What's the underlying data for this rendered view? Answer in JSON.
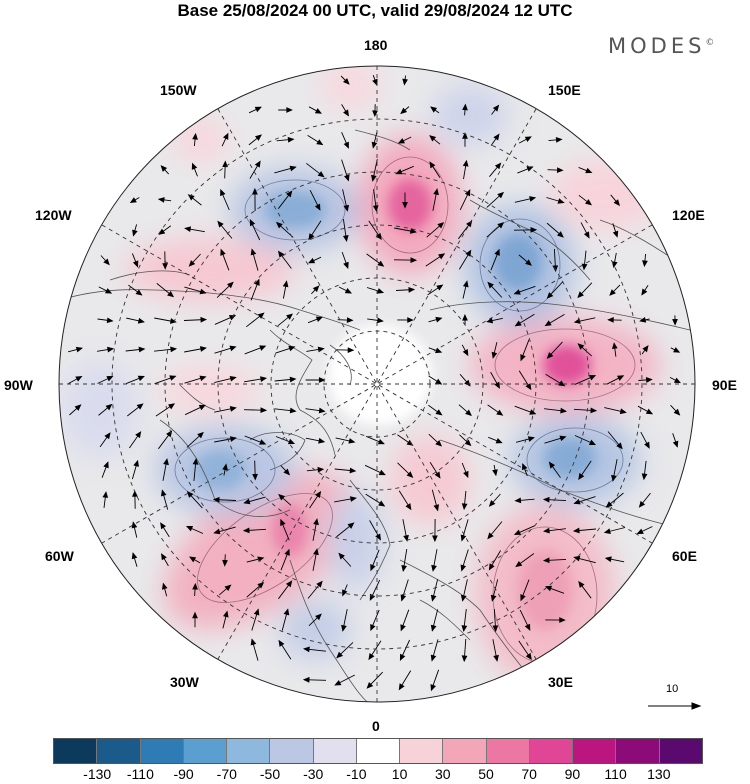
{
  "title": "Base 25/08/2024 00 UTC, valid 29/08/2024 12 UTC",
  "brand": "MODES",
  "brand_mark": "©",
  "longitude_labels": {
    "lon_180": "180",
    "lon_150W": "150W",
    "lon_150E": "150E",
    "lon_120W": "120W",
    "lon_120E": "120E",
    "lon_90W": "90W",
    "lon_90E": "90E",
    "lon_60W": "60W",
    "lon_60E": "60E",
    "lon_30W": "30W",
    "lon_30E": "30E",
    "lon_0": "0"
  },
  "vector_scale_label": "10",
  "colorbar": {
    "colors": [
      "#0b3a5c",
      "#1a5b8c",
      "#2f7bb5",
      "#5b9fd0",
      "#8fb8de",
      "#bcc8e3",
      "#e2e0ee",
      "#ffffff",
      "#f7d2d9",
      "#f2a6b8",
      "#ec77a2",
      "#e14596",
      "#bb1580",
      "#8c0b78",
      "#5a0a6e"
    ],
    "labels": [
      "-130",
      "-110",
      "-90",
      "-70",
      "-50",
      "-30",
      "-10",
      "10",
      "30",
      "50",
      "70",
      "90",
      "110",
      "130"
    ]
  }
}
